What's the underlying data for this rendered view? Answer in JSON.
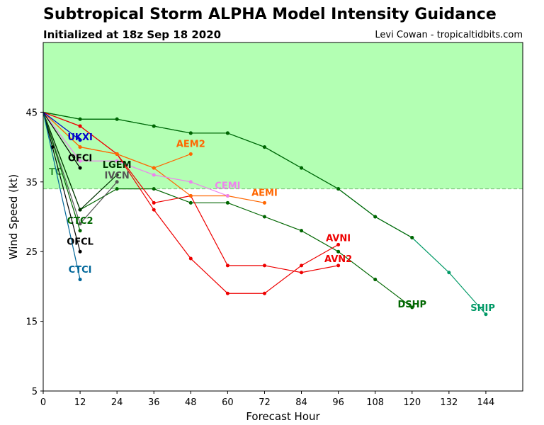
{
  "header": {
    "title": "Subtropical Storm ALPHA Model Intensity Guidance",
    "subtitle": "Initialized at 18z Sep 18 2020",
    "credit": "Levi Cowan - tropicaltidbits.com"
  },
  "chart_data": {
    "type": "line",
    "title": "Subtropical Storm ALPHA Model Intensity Guidance",
    "xlabel": "Forecast Hour",
    "ylabel": "Wind Speed (kt)",
    "xlim": [
      0,
      156
    ],
    "ylim": [
      5,
      55
    ],
    "xticks": [
      0,
      12,
      24,
      36,
      48,
      60,
      72,
      84,
      96,
      108,
      120,
      132,
      144
    ],
    "yticks": [
      5,
      15,
      25,
      35,
      45
    ],
    "shaded_threshold": 34,
    "shaded_color": "#b3ffb3",
    "grid": false,
    "series": [
      {
        "name": "SHIP",
        "color": "#009966",
        "x": [
          0,
          12,
          24,
          36,
          48,
          60,
          72,
          84,
          96,
          108,
          120,
          132,
          144
        ],
        "y": [
          45,
          44,
          44,
          43,
          42,
          42,
          40,
          37,
          34,
          30,
          27,
          22,
          16
        ],
        "label_at": [
          143,
          17
        ]
      },
      {
        "name": "DSHP",
        "color": "#006600",
        "x": [
          0,
          12,
          24,
          36,
          48,
          60,
          72,
          84,
          96,
          108,
          120
        ],
        "y": [
          45,
          44,
          44,
          43,
          42,
          42,
          40,
          37,
          34,
          30,
          27
        ],
        "label_at": [
          120,
          17.5
        ]
      },
      {
        "name": "DSHP",
        "color": "#006600",
        "x": [
          0,
          12,
          24,
          36,
          48,
          60,
          72,
          84,
          96,
          108,
          120
        ],
        "y": [
          45,
          31,
          34,
          34,
          32,
          32,
          30,
          28,
          25,
          21,
          17
        ],
        "label_at": null
      },
      {
        "name": "AVNI",
        "color": "#ee0000",
        "x": [
          0,
          12,
          24,
          36,
          48,
          60,
          72,
          84,
          96
        ],
        "y": [
          45,
          43,
          39,
          31,
          24,
          19,
          19,
          23,
          26
        ],
        "label_at": [
          96,
          27
        ]
      },
      {
        "name": "AVN2",
        "color": "#ee0000",
        "x": [
          0,
          12,
          24,
          36,
          48,
          60,
          72,
          84,
          96
        ],
        "y": [
          45,
          43,
          39,
          32,
          33,
          23,
          23,
          22,
          23
        ],
        "label_at": [
          96,
          24
        ]
      },
      {
        "name": "AEMI",
        "color": "#ff6600",
        "x": [
          0,
          12,
          24,
          36,
          48,
          60,
          72
        ],
        "y": [
          45,
          40,
          39,
          37,
          33,
          33,
          32
        ],
        "label_at": [
          72,
          33.5
        ]
      },
      {
        "name": "AEM2",
        "color": "#ff6600",
        "x": [
          0,
          12,
          24,
          36,
          48
        ],
        "y": [
          45,
          40,
          39,
          37,
          39
        ],
        "label_at": [
          48,
          40.5
        ]
      },
      {
        "name": "CEMI",
        "color": "#ee82ee",
        "x": [
          0,
          12,
          24,
          36,
          48,
          60
        ],
        "y": [
          45,
          38,
          38,
          36,
          35,
          33
        ],
        "label_at": [
          60,
          34.5
        ]
      },
      {
        "name": "LGEM",
        "color": "#003300",
        "x": [
          0,
          12,
          24
        ],
        "y": [
          45,
          31,
          36
        ],
        "label_at": [
          24,
          37.5
        ]
      },
      {
        "name": "IVCN",
        "color": "#555555",
        "x": [
          0,
          12,
          24
        ],
        "y": [
          45,
          29,
          35
        ],
        "label_at": [
          24,
          36
        ]
      },
      {
        "name": "UKXI",
        "color": "#0000cc",
        "x": [
          0,
          12
        ],
        "y": [
          45,
          41
        ],
        "label_at": [
          12,
          41.5
        ]
      },
      {
        "name": "OFCI",
        "color": "#000000",
        "x": [
          0,
          12
        ],
        "y": [
          45,
          37
        ],
        "label_at": [
          12,
          38.5
        ]
      },
      {
        "name": "TC",
        "color": "#3d9b3d",
        "x": [
          0
        ],
        "y": [
          45
        ],
        "label_at": [
          4,
          36.5
        ]
      },
      {
        "name": "CTC2",
        "color": "#006600",
        "x": [
          0,
          12
        ],
        "y": [
          45,
          28
        ],
        "label_at": [
          12,
          29.5
        ]
      },
      {
        "name": "OFCL",
        "color": "#000000",
        "x": [
          0,
          3,
          12
        ],
        "y": [
          45,
          40,
          25
        ],
        "label_at": [
          12,
          26.5
        ]
      },
      {
        "name": "CTCI",
        "color": "#006699",
        "x": [
          0,
          12
        ],
        "y": [
          45,
          21
        ],
        "label_at": [
          12,
          22.5
        ]
      }
    ]
  }
}
